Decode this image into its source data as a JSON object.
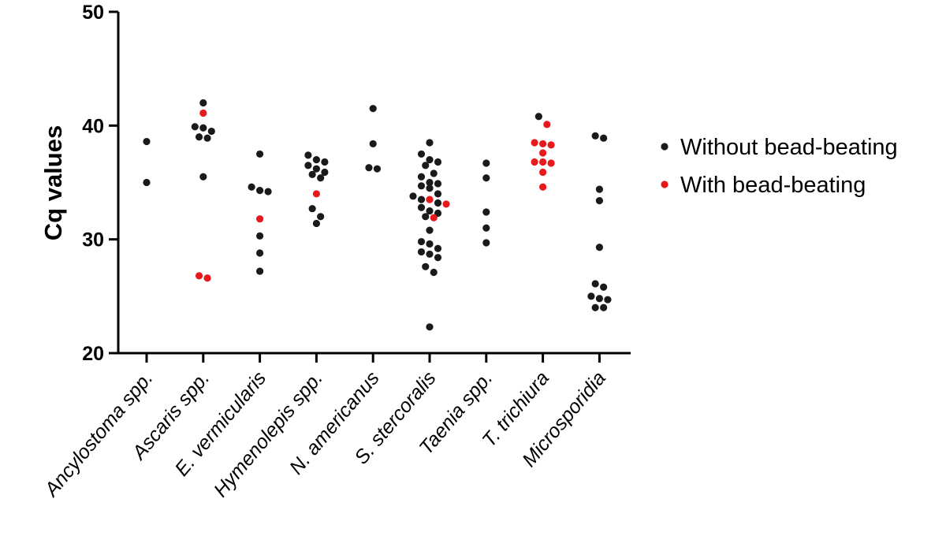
{
  "chart_data": {
    "type": "scatter",
    "ylabel": "Cq values",
    "ylim": [
      20,
      50
    ],
    "yticks": [
      20,
      30,
      40,
      50
    ],
    "categories": [
      "Ancylostoma spp.",
      "Ascaris spp.",
      "E. vermicularis",
      "Hymenolepis spp.",
      "N. americanus",
      "S. stercoralis",
      "Taenia spp.",
      "T. trichiura",
      "Microsporidia"
    ],
    "legend_position": "right",
    "series": [
      {
        "name": "Without bead-beating",
        "color": "#1a1a1a",
        "points": [
          {
            "category": "Ancylostoma spp.",
            "value": 38.6
          },
          {
            "category": "Ancylostoma spp.",
            "value": 35.0
          },
          {
            "category": "Ascaris spp.",
            "value": 42.0
          },
          {
            "category": "Ascaris spp.",
            "value": 39.8
          },
          {
            "category": "Ascaris spp.",
            "value": 39.5
          },
          {
            "category": "Ascaris spp.",
            "value": 39.9
          },
          {
            "category": "Ascaris spp.",
            "value": 38.9
          },
          {
            "category": "Ascaris spp.",
            "value": 39.0
          },
          {
            "category": "Ascaris spp.",
            "value": 35.5
          },
          {
            "category": "E. vermicularis",
            "value": 37.5
          },
          {
            "category": "E. vermicularis",
            "value": 34.6
          },
          {
            "category": "E. vermicularis",
            "value": 34.2
          },
          {
            "category": "E. vermicularis",
            "value": 34.3
          },
          {
            "category": "E. vermicularis",
            "value": 30.3
          },
          {
            "category": "E. vermicularis",
            "value": 28.8
          },
          {
            "category": "E. vermicularis",
            "value": 27.2
          },
          {
            "category": "Hymenolepis spp.",
            "value": 37.4
          },
          {
            "category": "Hymenolepis spp.",
            "value": 37.0
          },
          {
            "category": "Hymenolepis spp.",
            "value": 36.8
          },
          {
            "category": "Hymenolepis spp.",
            "value": 36.5
          },
          {
            "category": "Hymenolepis spp.",
            "value": 36.2
          },
          {
            "category": "Hymenolepis spp.",
            "value": 35.9
          },
          {
            "category": "Hymenolepis spp.",
            "value": 35.7
          },
          {
            "category": "Hymenolepis spp.",
            "value": 35.4
          },
          {
            "category": "Hymenolepis spp.",
            "value": 32.7
          },
          {
            "category": "Hymenolepis spp.",
            "value": 32.0
          },
          {
            "category": "Hymenolepis spp.",
            "value": 31.4
          },
          {
            "category": "N. americanus",
            "value": 41.5
          },
          {
            "category": "N. americanus",
            "value": 38.4
          },
          {
            "category": "N. americanus",
            "value": 36.2
          },
          {
            "category": "N. americanus",
            "value": 36.3
          },
          {
            "category": "S. stercoralis",
            "value": 38.5
          },
          {
            "category": "S. stercoralis",
            "value": 37.5
          },
          {
            "category": "S. stercoralis",
            "value": 37.0
          },
          {
            "category": "S. stercoralis",
            "value": 36.8
          },
          {
            "category": "S. stercoralis",
            "value": 36.5
          },
          {
            "category": "S. stercoralis",
            "value": 35.8
          },
          {
            "category": "S. stercoralis",
            "value": 35.5
          },
          {
            "category": "S. stercoralis",
            "value": 35.0
          },
          {
            "category": "S. stercoralis",
            "value": 34.9
          },
          {
            "category": "S. stercoralis",
            "value": 34.7
          },
          {
            "category": "S. stercoralis",
            "value": 34.5
          },
          {
            "category": "S. stercoralis",
            "value": 34.0
          },
          {
            "category": "S. stercoralis",
            "value": 33.8
          },
          {
            "category": "S. stercoralis",
            "value": 33.5
          },
          {
            "category": "S. stercoralis",
            "value": 33.2
          },
          {
            "category": "S. stercoralis",
            "value": 32.8
          },
          {
            "category": "S. stercoralis",
            "value": 32.5
          },
          {
            "category": "S. stercoralis",
            "value": 32.3
          },
          {
            "category": "S. stercoralis",
            "value": 32.0
          },
          {
            "category": "S. stercoralis",
            "value": 30.8
          },
          {
            "category": "S. stercoralis",
            "value": 29.8
          },
          {
            "category": "S. stercoralis",
            "value": 29.6
          },
          {
            "category": "S. stercoralis",
            "value": 29.2
          },
          {
            "category": "S. stercoralis",
            "value": 28.9
          },
          {
            "category": "S. stercoralis",
            "value": 28.7
          },
          {
            "category": "S. stercoralis",
            "value": 28.4
          },
          {
            "category": "S. stercoralis",
            "value": 27.6
          },
          {
            "category": "S. stercoralis",
            "value": 27.1
          },
          {
            "category": "S. stercoralis",
            "value": 22.3
          },
          {
            "category": "Taenia spp.",
            "value": 36.7
          },
          {
            "category": "Taenia spp.",
            "value": 35.4
          },
          {
            "category": "Taenia spp.",
            "value": 32.4
          },
          {
            "category": "Taenia spp.",
            "value": 31.0
          },
          {
            "category": "Taenia spp.",
            "value": 29.7
          },
          {
            "category": "T. trichiura",
            "value": 40.8
          },
          {
            "category": "Microsporidia",
            "value": 39.1
          },
          {
            "category": "Microsporidia",
            "value": 38.9
          },
          {
            "category": "Microsporidia",
            "value": 34.4
          },
          {
            "category": "Microsporidia",
            "value": 33.4
          },
          {
            "category": "Microsporidia",
            "value": 29.3
          },
          {
            "category": "Microsporidia",
            "value": 26.1
          },
          {
            "category": "Microsporidia",
            "value": 25.8
          },
          {
            "category": "Microsporidia",
            "value": 25.0
          },
          {
            "category": "Microsporidia",
            "value": 24.7
          },
          {
            "category": "Microsporidia",
            "value": 24.8
          },
          {
            "category": "Microsporidia",
            "value": 24.0
          },
          {
            "category": "Microsporidia",
            "value": 24.0
          }
        ]
      },
      {
        "name": "With bead-beating",
        "color": "#e8191c",
        "points": [
          {
            "category": "Ascaris spp.",
            "value": 41.1
          },
          {
            "category": "Ascaris spp.",
            "value": 26.8
          },
          {
            "category": "Ascaris spp.",
            "value": 26.6
          },
          {
            "category": "E. vermicularis",
            "value": 31.8
          },
          {
            "category": "Hymenolepis spp.",
            "value": 34.0
          },
          {
            "category": "S. stercoralis",
            "value": 33.5
          },
          {
            "category": "S. stercoralis",
            "value": 33.1
          },
          {
            "category": "S. stercoralis",
            "value": 31.9
          },
          {
            "category": "T. trichiura",
            "value": 40.1
          },
          {
            "category": "T. trichiura",
            "value": 38.5
          },
          {
            "category": "T. trichiura",
            "value": 38.4
          },
          {
            "category": "T. trichiura",
            "value": 38.3
          },
          {
            "category": "T. trichiura",
            "value": 37.6
          },
          {
            "category": "T. trichiura",
            "value": 36.8
          },
          {
            "category": "T. trichiura",
            "value": 36.8
          },
          {
            "category": "T. trichiura",
            "value": 36.7
          },
          {
            "category": "T. trichiura",
            "value": 35.9
          },
          {
            "category": "T. trichiura",
            "value": 34.6
          }
        ]
      }
    ]
  }
}
